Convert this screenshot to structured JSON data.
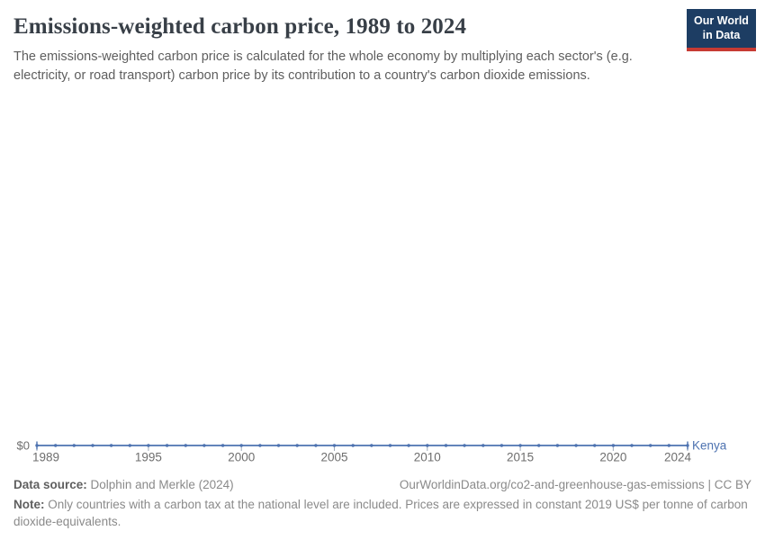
{
  "header": {
    "title": "Emissions-weighted carbon price, 1989 to 2024",
    "subtitle": "The emissions-weighted carbon price is calculated for the whole economy by multiplying each sector's (e.g. electricity, or road transport) carbon price by its contribution to a country's carbon dioxide emissions.",
    "logo_line1": "Our World",
    "logo_line2": "in Data",
    "logo_bg_color": "#1d3d63",
    "logo_stripe_color": "#c73a33"
  },
  "chart_data": {
    "type": "line",
    "title": "Emissions-weighted carbon price, 1989 to 2024",
    "xlabel": "",
    "ylabel": "",
    "xlim": [
      1989,
      2024
    ],
    "ylim": [
      0,
      0
    ],
    "grid": false,
    "legend_position": "entity-label-right-of-line",
    "y_axis_label": "$0",
    "x_ticks": [
      1989,
      1995,
      2000,
      2005,
      2010,
      2015,
      2020,
      2024
    ],
    "series": [
      {
        "name": "Kenya",
        "color": "#4d72b0",
        "x": [
          1989,
          1990,
          1991,
          1992,
          1993,
          1994,
          1995,
          1996,
          1997,
          1998,
          1999,
          2000,
          2001,
          2002,
          2003,
          2004,
          2005,
          2006,
          2007,
          2008,
          2009,
          2010,
          2011,
          2012,
          2013,
          2014,
          2015,
          2016,
          2017,
          2018,
          2019,
          2020,
          2021,
          2022,
          2023,
          2024
        ],
        "y": [
          0,
          0,
          0,
          0,
          0,
          0,
          0,
          0,
          0,
          0,
          0,
          0,
          0,
          0,
          0,
          0,
          0,
          0,
          0,
          0,
          0,
          0,
          0,
          0,
          0,
          0,
          0,
          0,
          0,
          0,
          0,
          0,
          0,
          0,
          0,
          0
        ]
      }
    ]
  },
  "footer": {
    "data_source_label": "Data source:",
    "data_source_value": "Dolphin and Merkle (2024)",
    "attribution": "OurWorldinData.org/co2-and-greenhouse-gas-emissions | CC BY",
    "note_label": "Note:",
    "note_value": "Only countries with a carbon tax at the national level are included. Prices are expressed in constant 2019 US$ per tonne of carbon dioxide-equivalents."
  }
}
